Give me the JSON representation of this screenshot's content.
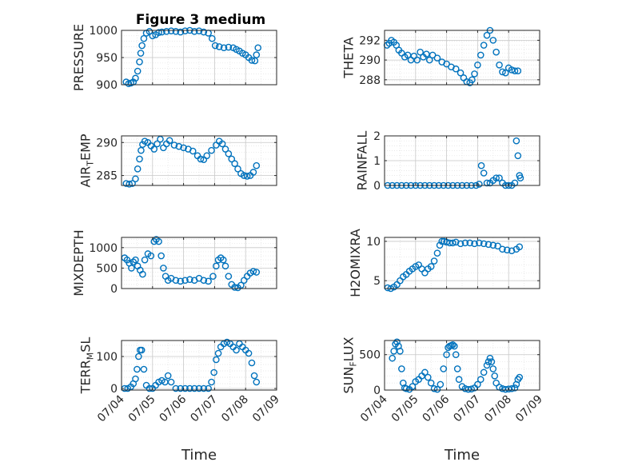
{
  "figure": {
    "title": "Figure 3 medium",
    "colors": {
      "marker": "#0072BD",
      "axis": "#262626",
      "grid": "#c8c8c8",
      "box": "#ffffff"
    }
  },
  "chart_data": [
    {
      "type": "scatter",
      "ylabel": "PRESSURE",
      "ylim": [
        900,
        1000
      ],
      "yticks": [
        900,
        950,
        1000
      ],
      "ytick_labels": [
        "900",
        "950",
        "1000"
      ],
      "xlim": [
        0,
        5
      ],
      "xticks": [
        0,
        1,
        2,
        3,
        4,
        5
      ],
      "xtick_labels": [
        "07/04",
        "07/05",
        "07/06",
        "07/07",
        "07/08",
        "07/09"
      ],
      "xlabel": "",
      "grid": "on",
      "x": [
        0.15,
        0.23,
        0.3,
        0.38,
        0.45,
        0.52,
        0.58,
        0.62,
        0.66,
        0.72,
        0.8,
        0.9,
        1.0,
        1.1,
        1.2,
        1.3,
        1.45,
        1.6,
        1.75,
        1.9,
        2.05,
        2.2,
        2.35,
        2.5,
        2.65,
        2.8,
        2.92,
        3.02,
        3.15,
        3.3,
        3.45,
        3.6,
        3.7,
        3.8,
        3.9,
        4.0,
        4.1,
        4.2,
        4.3,
        4.35,
        4.4
      ],
      "y": [
        905,
        902,
        903,
        905,
        912,
        925,
        942,
        958,
        972,
        985,
        995,
        998,
        990,
        992,
        996,
        997,
        998,
        999,
        998,
        997,
        999,
        1000,
        998,
        999,
        997,
        995,
        985,
        972,
        970,
        968,
        969,
        968,
        965,
        962,
        958,
        955,
        950,
        945,
        944,
        955,
        968
      ]
    },
    {
      "type": "scatter",
      "ylabel": "THETA",
      "ylim": [
        287.5,
        293
      ],
      "yticks": [
        288,
        290,
        292
      ],
      "ytick_labels": [
        "288",
        "290",
        "292"
      ],
      "xlim": [
        0,
        5
      ],
      "xticks": [
        0,
        1,
        2,
        3,
        4,
        5
      ],
      "xtick_labels": [
        "07/04",
        "07/05",
        "07/06",
        "07/07",
        "07/08",
        "07/09"
      ],
      "xlabel": "",
      "grid": "on",
      "x": [
        0.08,
        0.15,
        0.22,
        0.3,
        0.38,
        0.46,
        0.55,
        0.65,
        0.75,
        0.85,
        0.95,
        1.05,
        1.15,
        1.25,
        1.35,
        1.45,
        1.55,
        1.7,
        1.85,
        2.0,
        2.15,
        2.3,
        2.45,
        2.55,
        2.65,
        2.75,
        2.82,
        2.9,
        3.0,
        3.1,
        3.2,
        3.3,
        3.4,
        3.5,
        3.6,
        3.7,
        3.8,
        3.9,
        4.0,
        4.1,
        4.2,
        4.3
      ],
      "y": [
        291.5,
        291.7,
        292.0,
        291.8,
        291.5,
        291.0,
        290.7,
        290.3,
        290.5,
        290.0,
        290.4,
        290.0,
        290.8,
        290.3,
        290.6,
        290.0,
        290.5,
        290.2,
        289.8,
        289.6,
        289.3,
        289.1,
        288.7,
        288.2,
        287.8,
        287.7,
        288.0,
        288.6,
        289.5,
        290.5,
        291.5,
        292.5,
        293.0,
        292.0,
        290.8,
        289.5,
        288.8,
        288.7,
        289.2,
        289.0,
        288.9,
        288.9
      ]
    },
    {
      "type": "scatter",
      "ylabel": "AIR_TEMP",
      "ylim": [
        283.5,
        291
      ],
      "yticks": [
        285,
        290
      ],
      "ytick_labels": [
        "285",
        "290"
      ],
      "xlim": [
        0,
        5
      ],
      "xticks": [
        0,
        1,
        2,
        3,
        4,
        5
      ],
      "xtick_labels": [
        "07/04",
        "07/05",
        "07/06",
        "07/07",
        "07/08",
        "07/09"
      ],
      "xlabel": "",
      "grid": "on",
      "x": [
        0.15,
        0.25,
        0.35,
        0.45,
        0.52,
        0.58,
        0.63,
        0.68,
        0.75,
        0.85,
        0.95,
        1.05,
        1.15,
        1.25,
        1.35,
        1.45,
        1.55,
        1.7,
        1.85,
        2.0,
        2.15,
        2.3,
        2.45,
        2.55,
        2.65,
        2.75,
        2.9,
        3.05,
        3.15,
        3.25,
        3.35,
        3.45,
        3.55,
        3.65,
        3.75,
        3.85,
        3.95,
        4.05,
        4.15,
        4.25,
        4.35
      ],
      "y": [
        283.8,
        283.7,
        283.8,
        284.5,
        286.0,
        287.5,
        288.8,
        289.7,
        290.2,
        290.0,
        289.5,
        289.0,
        289.8,
        290.5,
        289.2,
        289.8,
        290.3,
        289.6,
        289.4,
        289.2,
        289.0,
        288.7,
        288.0,
        287.5,
        287.4,
        288.0,
        288.8,
        289.6,
        290.2,
        289.8,
        289.0,
        288.3,
        287.5,
        286.8,
        286.0,
        285.3,
        285.0,
        284.9,
        285.0,
        285.5,
        286.5
      ]
    },
    {
      "type": "scatter",
      "ylabel": "RAINFALL",
      "ylim": [
        0,
        2
      ],
      "yticks": [
        0,
        1,
        2
      ],
      "ytick_labels": [
        "0",
        "1",
        "2"
      ],
      "xlim": [
        0,
        5
      ],
      "xticks": [
        0,
        1,
        2,
        3,
        4,
        5
      ],
      "xtick_labels": [
        "07/04",
        "07/05",
        "07/06",
        "07/07",
        "07/08",
        "07/09"
      ],
      "xlabel": "",
      "grid": "on",
      "x": [
        0.1,
        0.25,
        0.4,
        0.55,
        0.7,
        0.85,
        1.0,
        1.15,
        1.3,
        1.45,
        1.6,
        1.75,
        1.9,
        2.05,
        2.2,
        2.35,
        2.5,
        2.65,
        2.8,
        2.95,
        3.05,
        3.12,
        3.2,
        3.3,
        3.4,
        3.5,
        3.6,
        3.7,
        3.8,
        3.9,
        4.0,
        4.1,
        4.2,
        4.25,
        4.3,
        4.35,
        4.38
      ],
      "y": [
        0,
        0,
        0,
        0,
        0,
        0,
        0,
        0,
        0,
        0,
        0,
        0,
        0,
        0,
        0,
        0,
        0,
        0,
        0,
        0,
        0.05,
        0.8,
        0.5,
        0.1,
        0.1,
        0.2,
        0.3,
        0.3,
        0.1,
        0,
        0,
        0,
        0.1,
        1.8,
        1.2,
        0.4,
        0.3
      ]
    },
    {
      "type": "scatter",
      "ylabel": "MIXDEPTH",
      "ylim": [
        0,
        1250
      ],
      "yticks": [
        0,
        500,
        1000
      ],
      "ytick_labels": [
        "0",
        "500",
        "1000"
      ],
      "xlim": [
        0,
        5
      ],
      "xticks": [
        0,
        1,
        2,
        3,
        4,
        5
      ],
      "xtick_labels": [
        "07/04",
        "07/05",
        "07/06",
        "07/07",
        "07/08",
        "07/09"
      ],
      "xlabel": "",
      "grid": "on",
      "x": [
        0.1,
        0.18,
        0.25,
        0.32,
        0.38,
        0.45,
        0.52,
        0.6,
        0.68,
        0.75,
        0.85,
        0.95,
        1.05,
        1.12,
        1.2,
        1.28,
        1.35,
        1.42,
        1.5,
        1.6,
        1.75,
        1.9,
        2.05,
        2.2,
        2.35,
        2.5,
        2.65,
        2.8,
        2.95,
        3.05,
        3.12,
        3.2,
        3.28,
        3.35,
        3.45,
        3.55,
        3.65,
        3.75,
        3.85,
        3.95,
        4.05,
        4.15,
        4.25,
        4.35
      ],
      "y": [
        750,
        700,
        620,
        500,
        650,
        700,
        550,
        450,
        350,
        700,
        850,
        800,
        1150,
        1200,
        1150,
        800,
        500,
        300,
        200,
        250,
        200,
        180,
        200,
        220,
        200,
        250,
        200,
        180,
        300,
        550,
        700,
        750,
        700,
        550,
        300,
        100,
        30,
        20,
        80,
        200,
        300,
        380,
        420,
        400
      ]
    },
    {
      "type": "scatter",
      "ylabel": "H2OMIXRA",
      "ylim": [
        4,
        10.5
      ],
      "yticks": [
        5,
        10
      ],
      "ytick_labels": [
        "5",
        "10"
      ],
      "xlim": [
        0,
        5
      ],
      "xticks": [
        0,
        1,
        2,
        3,
        4,
        5
      ],
      "xtick_labels": [
        "07/04",
        "07/05",
        "07/06",
        "07/07",
        "07/08",
        "07/09"
      ],
      "xlabel": "",
      "grid": "on",
      "x": [
        0.1,
        0.2,
        0.3,
        0.4,
        0.5,
        0.6,
        0.7,
        0.8,
        0.9,
        1.0,
        1.1,
        1.2,
        1.3,
        1.4,
        1.5,
        1.6,
        1.7,
        1.78,
        1.85,
        1.92,
        2.0,
        2.1,
        2.2,
        2.3,
        2.45,
        2.6,
        2.75,
        2.9,
        3.05,
        3.2,
        3.35,
        3.5,
        3.65,
        3.8,
        3.95,
        4.1,
        4.25,
        4.35
      ],
      "y": [
        4.1,
        4.0,
        4.2,
        4.5,
        5.0,
        5.5,
        5.8,
        6.2,
        6.5,
        6.8,
        7.0,
        6.5,
        6.0,
        6.5,
        6.8,
        7.5,
        8.5,
        9.5,
        10.0,
        10.0,
        9.9,
        9.8,
        9.8,
        9.9,
        9.7,
        9.8,
        9.8,
        9.7,
        9.8,
        9.7,
        9.6,
        9.5,
        9.4,
        9.0,
        8.9,
        8.8,
        9.0,
        9.3
      ]
    },
    {
      "type": "scatter",
      "ylabel": "TERR_MSL",
      "ylim": [
        -5,
        150
      ],
      "yticks": [
        0,
        100
      ],
      "ytick_labels": [
        "0",
        "100"
      ],
      "xlim": [
        0,
        5
      ],
      "xticks": [
        0,
        1,
        2,
        3,
        4,
        5
      ],
      "xtick_labels": [
        "07/04",
        "07/05",
        "07/06",
        "07/07",
        "07/08",
        "07/09"
      ],
      "xlabel": "Time",
      "grid": "on",
      "x": [
        0.1,
        0.2,
        0.3,
        0.38,
        0.45,
        0.5,
        0.55,
        0.6,
        0.65,
        0.72,
        0.8,
        0.9,
        1.0,
        1.1,
        1.2,
        1.3,
        1.4,
        1.5,
        1.6,
        1.75,
        1.9,
        2.05,
        2.2,
        2.35,
        2.5,
        2.65,
        2.8,
        2.9,
        2.98,
        3.05,
        3.12,
        3.2,
        3.3,
        3.4,
        3.5,
        3.6,
        3.7,
        3.8,
        3.9,
        4.0,
        4.1,
        4.2,
        4.28,
        4.35
      ],
      "y": [
        0,
        0,
        5,
        15,
        30,
        60,
        100,
        120,
        120,
        60,
        10,
        0,
        0,
        10,
        20,
        25,
        20,
        40,
        20,
        0,
        0,
        0,
        0,
        0,
        0,
        0,
        0,
        20,
        50,
        90,
        110,
        130,
        140,
        145,
        140,
        130,
        120,
        140,
        130,
        120,
        110,
        80,
        40,
        20
      ]
    },
    {
      "type": "scatter",
      "ylabel": "SUN_FLUX",
      "ylim": [
        0,
        700
      ],
      "yticks": [
        0,
        500
      ],
      "ytick_labels": [
        "0",
        "500"
      ],
      "xlim": [
        0,
        5
      ],
      "xticks": [
        0,
        1,
        2,
        3,
        4,
        5
      ],
      "xtick_labels": [
        "07/04",
        "07/05",
        "07/06",
        "07/07",
        "07/08",
        "07/09"
      ],
      "xlabel": "Time",
      "grid": "on",
      "x": [
        0.25,
        0.3,
        0.35,
        0.4,
        0.45,
        0.5,
        0.55,
        0.6,
        0.65,
        0.7,
        0.8,
        0.9,
        1.0,
        1.1,
        1.2,
        1.3,
        1.4,
        1.5,
        1.6,
        1.7,
        1.8,
        1.9,
        2.0,
        2.05,
        2.1,
        2.15,
        2.2,
        2.25,
        2.3,
        2.35,
        2.4,
        2.5,
        2.6,
        2.7,
        2.8,
        2.9,
        3.0,
        3.1,
        3.2,
        3.3,
        3.35,
        3.4,
        3.45,
        3.5,
        3.55,
        3.6,
        3.7,
        3.8,
        3.9,
        4.0,
        4.1,
        4.2,
        4.25,
        4.3,
        4.35
      ],
      "y": [
        450,
        550,
        650,
        680,
        620,
        550,
        300,
        100,
        30,
        20,
        10,
        50,
        120,
        150,
        200,
        250,
        180,
        100,
        20,
        10,
        80,
        300,
        500,
        600,
        620,
        630,
        640,
        620,
        500,
        300,
        150,
        50,
        20,
        10,
        15,
        30,
        80,
        150,
        250,
        350,
        400,
        450,
        400,
        300,
        200,
        100,
        40,
        20,
        10,
        15,
        20,
        30,
        80,
        150,
        180
      ]
    }
  ]
}
